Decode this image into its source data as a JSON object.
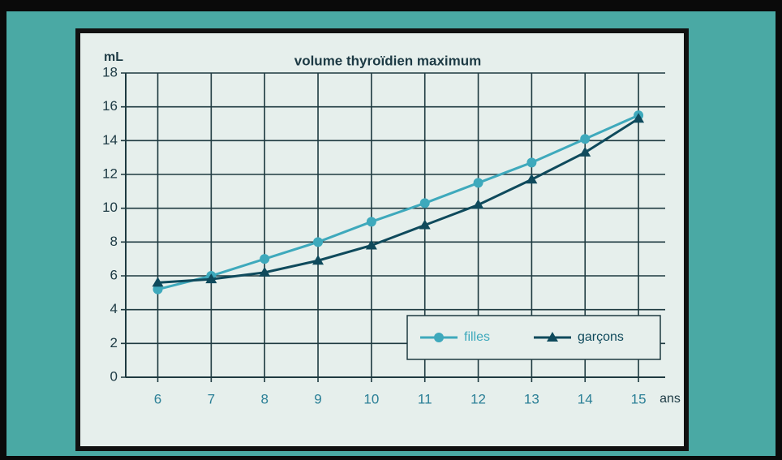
{
  "chart_data": {
    "type": "line",
    "title": "volume thyroïdien maximum",
    "y_label": "mL",
    "x_label": "ans",
    "x": [
      6,
      7,
      8,
      9,
      10,
      11,
      12,
      13,
      14,
      15
    ],
    "series": [
      {
        "name": "filles",
        "color": "#3ea9bc",
        "marker": "circle",
        "values": [
          5.2,
          6.0,
          7.0,
          8.0,
          9.2,
          10.3,
          11.5,
          12.7,
          14.1,
          15.5
        ]
      },
      {
        "name": "garçons",
        "color": "#0f4a5c",
        "marker": "triangle",
        "values": [
          5.6,
          5.8,
          6.2,
          6.9,
          7.8,
          9.0,
          10.2,
          11.7,
          13.3,
          15.3
        ]
      }
    ],
    "xlim": [
      5.4,
      15.5
    ],
    "xticks": [
      6,
      7,
      8,
      9,
      10,
      11,
      12,
      13,
      14,
      15
    ],
    "ylim": [
      0,
      18
    ],
    "yticks": [
      0,
      2,
      4,
      6,
      8,
      10,
      12,
      14,
      16,
      18
    ],
    "grid": true,
    "legend": "lower right"
  }
}
